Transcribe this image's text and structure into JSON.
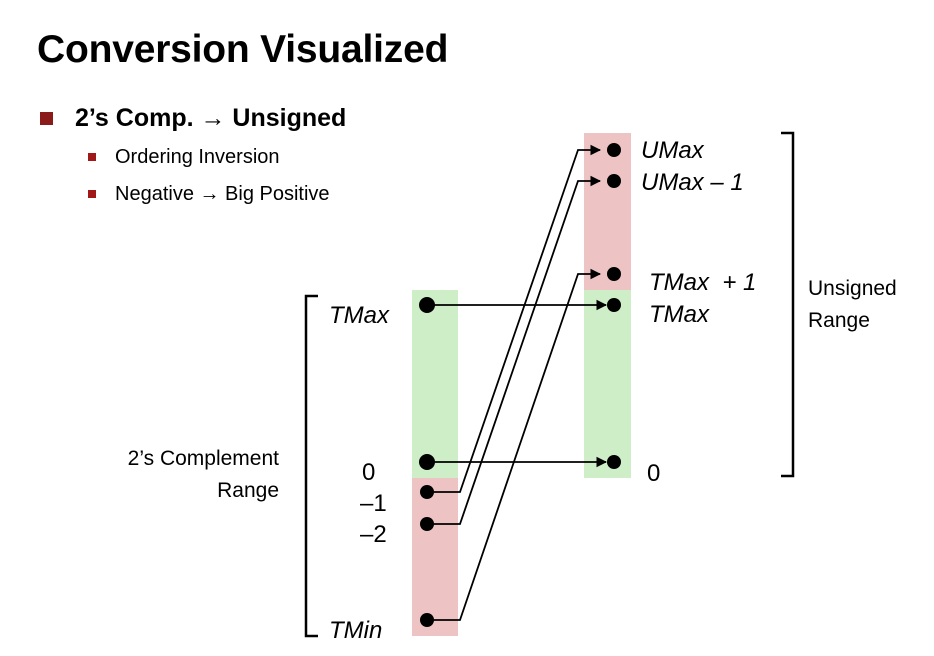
{
  "title": "Conversion Visualized",
  "bullets": {
    "main": "2’s Comp. → Unsigned",
    "sub": [
      "Ordering Inversion",
      "Negative → Big Positive"
    ]
  },
  "colors": {
    "positive_band": "#cdeec7",
    "negative_band": "#eec3c3",
    "bullet": "#8b1a1a"
  },
  "left_scale": {
    "range_label": [
      "2’s Complement",
      "Range"
    ],
    "tmax": "TMax",
    "zero": "0",
    "neg1": "–1",
    "neg2": "–2",
    "tmin": "TMin"
  },
  "right_scale": {
    "range_label": [
      "Unsigned",
      "Range"
    ],
    "umax": "UMax",
    "umax_minus1": "UMax – 1",
    "tmax_plus1": "TMax  + 1",
    "tmax": "TMax",
    "zero": "0"
  }
}
